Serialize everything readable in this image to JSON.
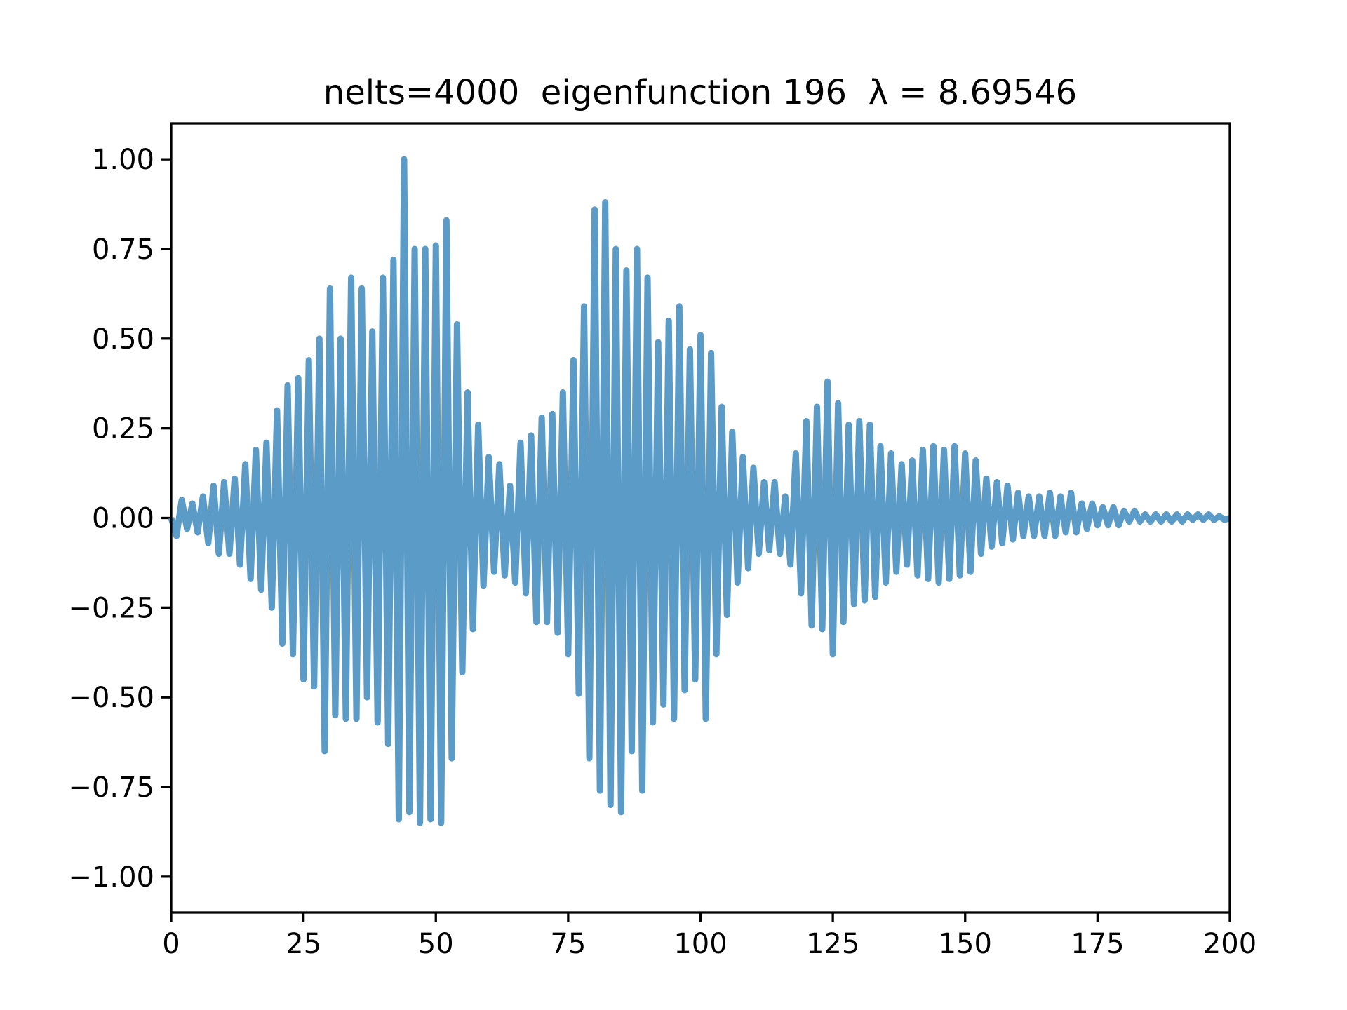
{
  "chart_data": {
    "type": "line",
    "title": "nelts=4000  eigenfunction 196  λ = 8.69546",
    "x": [
      0,
      1,
      2,
      3,
      4,
      5,
      6,
      7,
      8,
      9,
      10,
      11,
      12,
      13,
      14,
      15,
      16,
      17,
      18,
      19,
      20,
      21,
      22,
      23,
      24,
      25,
      26,
      27,
      28,
      29,
      30,
      31,
      32,
      33,
      34,
      35,
      36,
      37,
      38,
      39,
      40,
      41,
      42,
      43,
      44,
      45,
      46,
      47,
      48,
      49,
      50,
      51,
      52,
      53,
      54,
      55,
      56,
      57,
      58,
      59,
      60,
      61,
      62,
      63,
      64,
      65,
      66,
      67,
      68,
      69,
      70,
      71,
      72,
      73,
      74,
      75,
      76,
      77,
      78,
      79,
      80,
      81,
      82,
      83,
      84,
      85,
      86,
      87,
      88,
      89,
      90,
      91,
      92,
      93,
      94,
      95,
      96,
      97,
      98,
      99,
      100,
      101,
      102,
      103,
      104,
      105,
      106,
      107,
      108,
      109,
      110,
      111,
      112,
      113,
      114,
      115,
      116,
      117,
      118,
      119,
      120,
      121,
      122,
      123,
      124,
      125,
      126,
      127,
      128,
      129,
      130,
      131,
      132,
      133,
      134,
      135,
      136,
      137,
      138,
      139,
      140,
      141,
      142,
      143,
      144,
      145,
      146,
      147,
      148,
      149,
      150,
      151,
      152,
      153,
      154,
      155,
      156,
      157,
      158,
      159,
      160,
      161,
      162,
      163,
      164,
      165,
      166,
      167,
      168,
      169,
      170,
      171,
      172,
      173,
      174,
      175,
      176,
      177,
      178,
      179,
      180,
      181,
      182,
      183,
      184,
      185,
      186,
      187,
      188,
      189,
      190,
      191,
      192,
      193,
      194,
      195,
      196,
      197,
      198,
      199,
      200
    ],
    "series": [
      {
        "color": "#5a9bc8",
        "values": [
          0,
          -0.05,
          0.05,
          -0.03,
          0.04,
          -0.04,
          0.06,
          -0.07,
          0.09,
          -0.1,
          0.1,
          -0.1,
          0.11,
          -0.13,
          0.15,
          -0.17,
          0.19,
          -0.2,
          0.21,
          -0.25,
          0.3,
          -0.35,
          0.37,
          -0.38,
          0.39,
          -0.45,
          0.44,
          -0.47,
          0.5,
          -0.65,
          0.64,
          -0.55,
          0.5,
          -0.56,
          0.67,
          -0.56,
          0.64,
          -0.5,
          0.52,
          -0.57,
          0.67,
          -0.63,
          0.72,
          -0.84,
          1.0,
          -0.82,
          0.75,
          -0.85,
          0.75,
          -0.84,
          0.76,
          -0.85,
          0.83,
          -0.67,
          0.54,
          -0.43,
          0.35,
          -0.31,
          0.26,
          -0.19,
          0.17,
          -0.15,
          0.15,
          -0.16,
          0.09,
          -0.18,
          0.21,
          -0.21,
          0.23,
          -0.29,
          0.28,
          -0.29,
          0.29,
          -0.32,
          0.35,
          -0.38,
          0.44,
          -0.49,
          0.59,
          -0.67,
          0.86,
          -0.76,
          0.88,
          -0.8,
          0.75,
          -0.82,
          0.69,
          -0.65,
          0.75,
          -0.76,
          0.67,
          -0.57,
          0.49,
          -0.52,
          0.55,
          -0.56,
          0.59,
          -0.48,
          0.47,
          -0.45,
          0.51,
          -0.56,
          0.46,
          -0.38,
          0.31,
          -0.27,
          0.24,
          -0.18,
          0.17,
          -0.14,
          0.14,
          -0.1,
          0.1,
          -0.09,
          0.1,
          -0.1,
          0.06,
          -0.13,
          0.18,
          -0.21,
          0.27,
          -0.3,
          0.31,
          -0.31,
          0.38,
          -0.38,
          0.32,
          -0.29,
          0.26,
          -0.24,
          0.27,
          -0.23,
          0.26,
          -0.22,
          0.2,
          -0.18,
          0.18,
          -0.15,
          0.15,
          -0.13,
          0.16,
          -0.16,
          0.19,
          -0.17,
          0.2,
          -0.18,
          0.19,
          -0.17,
          0.2,
          -0.16,
          0.18,
          -0.15,
          0.16,
          -0.1,
          0.11,
          -0.08,
          0.1,
          -0.07,
          0.09,
          -0.06,
          0.07,
          -0.05,
          0.06,
          -0.05,
          0.06,
          -0.05,
          0.07,
          -0.05,
          0.06,
          -0.04,
          0.07,
          -0.04,
          0.04,
          -0.03,
          0.04,
          -0.02,
          0.03,
          -0.02,
          0.03,
          -0.02,
          0.02,
          -0.01,
          0.02,
          -0.01,
          0.01,
          -0.01,
          0.01,
          -0.01,
          0.01,
          -0.01,
          0.01,
          -0.01,
          0.01,
          -0.005,
          0.01,
          -0.005,
          0.01,
          -0.005,
          0.005,
          -0.005,
          0
        ]
      }
    ],
    "xlim": [
      0,
      200
    ],
    "xticks": [
      0,
      25,
      50,
      75,
      100,
      125,
      150,
      175,
      200
    ],
    "ylim": [
      -1.1,
      1.1
    ],
    "yticks": [
      {
        "value": -1,
        "label": "−1.00"
      },
      {
        "value": -0.75,
        "label": "−0.75"
      },
      {
        "value": -0.5,
        "label": "−0.50"
      },
      {
        "value": -0.25,
        "label": "−0.25"
      },
      {
        "value": 0,
        "label": "0.00"
      },
      {
        "value": 0.25,
        "label": "0.25"
      },
      {
        "value": 0.5,
        "label": "0.50"
      },
      {
        "value": 0.75,
        "label": "0.75"
      },
      {
        "value": 1,
        "label": "1.00"
      }
    ],
    "grid": false
  }
}
